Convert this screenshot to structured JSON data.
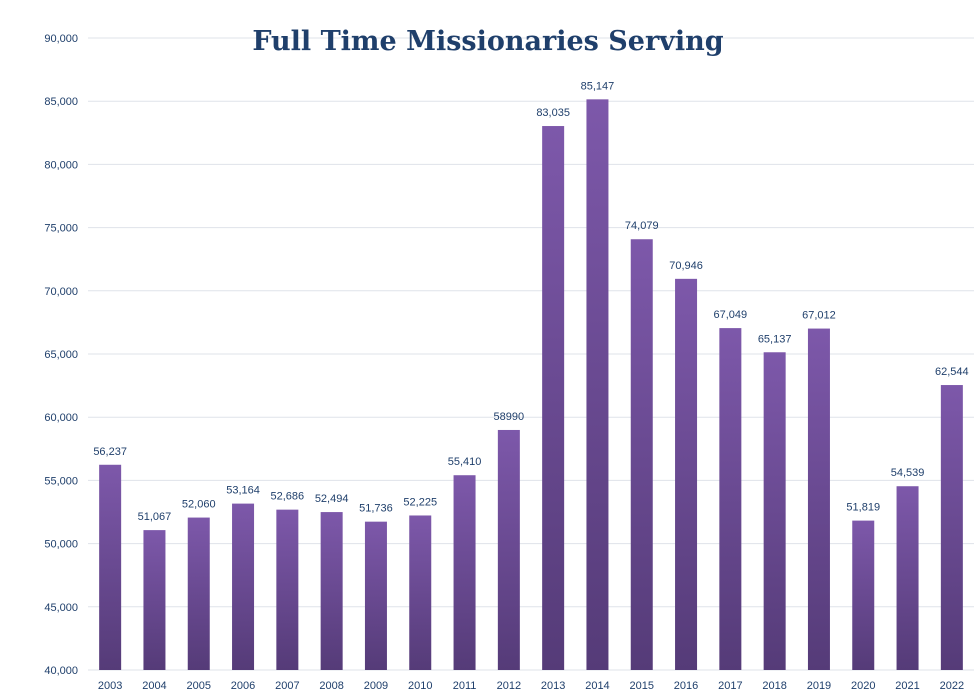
{
  "chart_data": {
    "type": "bar",
    "title": "Full Time Missionaries Serving",
    "xlabel": "",
    "ylabel": "",
    "ylim": [
      40000,
      90000
    ],
    "grid": true,
    "yticks": [
      {
        "value": 40000,
        "label": "40,000"
      },
      {
        "value": 45000,
        "label": "45,000"
      },
      {
        "value": 50000,
        "label": "50,000"
      },
      {
        "value": 55000,
        "label": "55,000"
      },
      {
        "value": 60000,
        "label": "60,000"
      },
      {
        "value": 65000,
        "label": "65,000"
      },
      {
        "value": 70000,
        "label": "70,000"
      },
      {
        "value": 75000,
        "label": "75,000"
      },
      {
        "value": 80000,
        "label": "80,000"
      },
      {
        "value": 85000,
        "label": "85,000"
      },
      {
        "value": 90000,
        "label": "90,000"
      }
    ],
    "categories": [
      "2003",
      "2004",
      "2005",
      "2006",
      "2007",
      "2008",
      "2009",
      "2010",
      "2011",
      "2012",
      "2013",
      "2014",
      "2015",
      "2016",
      "2017",
      "2018",
      "2019",
      "2020",
      "2021",
      "2022"
    ],
    "values": [
      56237,
      51067,
      52060,
      53164,
      52686,
      52494,
      51736,
      52225,
      55410,
      58990,
      83035,
      85147,
      74079,
      70946,
      67049,
      65137,
      67012,
      51819,
      54539,
      62544
    ],
    "data_labels": [
      "56,237",
      "51,067",
      "52,060",
      "53,164",
      "52,686",
      "52,494",
      "51,736",
      "52,225",
      "55,410",
      "58990",
      "83,035",
      "85,147",
      "74,079",
      "70,946",
      "67,049",
      "65,137",
      "67,012",
      "51,819",
      "54,539",
      "62,544"
    ],
    "colors": {
      "bar_top": "#7d58aa",
      "bar_bottom": "#553b78",
      "text": "#1f3f6b",
      "grid": "#dfe3ea"
    }
  }
}
